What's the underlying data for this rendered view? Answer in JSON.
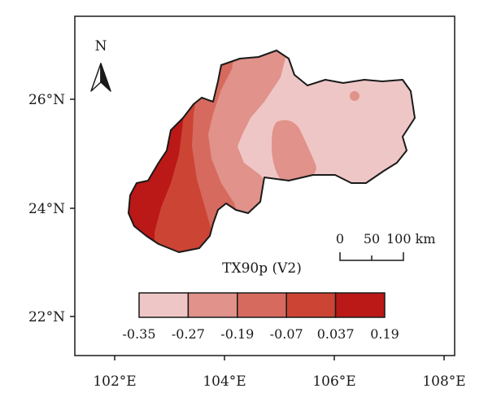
{
  "map": {
    "north_label": "N",
    "lat_labels": [
      "26°N",
      "24°N",
      "22°N"
    ],
    "lon_labels": [
      "102°E",
      "104°E",
      "106°E",
      "108°E"
    ],
    "legend": {
      "title": "TX90p (V2)",
      "colors": [
        "#efc6c6",
        "#e1928a",
        "#d76a5e",
        "#cc4434",
        "#bb1818"
      ],
      "tick_labels": [
        "-0.35",
        "-0.27",
        "-0.19",
        "-0.07",
        "0.037",
        "0.19"
      ]
    },
    "scale_bar": {
      "tick_labels": [
        "0",
        "50",
        "100 km"
      ]
    }
  }
}
